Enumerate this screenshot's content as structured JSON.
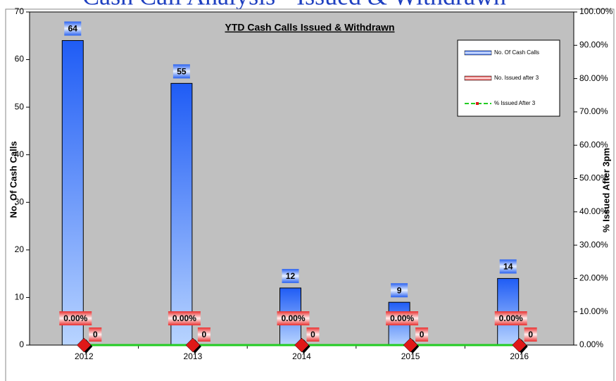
{
  "header": {
    "title": "Cash Call Analysis - Issued & Withdrawn"
  },
  "chart_data": {
    "type": "bar",
    "title": "YTD Cash Calls Issued & Withdrawn",
    "ylabel": "No. Of Cash Calls",
    "y2label": "% Issued After 3pm",
    "categories": [
      "2012",
      "2013",
      "2014",
      "2015",
      "2016"
    ],
    "series": [
      {
        "name": "No. Of Cash Calls",
        "color": "#2a62f0",
        "values": [
          64,
          55,
          12,
          9,
          14
        ]
      },
      {
        "name": "No. Issued after 3",
        "color": "#e83030",
        "values": [
          0,
          0,
          0,
          0,
          0
        ]
      },
      {
        "name": "% Issued After 3",
        "type": "line",
        "axis": "y2",
        "color": "#22cc22",
        "marker_color": "#e01818",
        "values": [
          0,
          0,
          0,
          0,
          0
        ],
        "value_labels": [
          "0.00%",
          "0.00%",
          "0.00%",
          "0.00%",
          "0.00%"
        ]
      }
    ],
    "ylim": [
      0,
      70
    ],
    "yticks": [
      0,
      10,
      20,
      30,
      40,
      50,
      60,
      70
    ],
    "y2lim": [
      0,
      100
    ],
    "y2ticks": [
      {
        "value": 0,
        "label": "0.00%"
      },
      {
        "value": 10,
        "label": "10.00%"
      },
      {
        "value": 20,
        "label": "20.00%"
      },
      {
        "value": 30,
        "label": "30.00%"
      },
      {
        "value": 40,
        "label": "40.00%"
      },
      {
        "value": 50,
        "label": "50.00%"
      },
      {
        "value": 60,
        "label": "60.00%"
      },
      {
        "value": 70,
        "label": "70.00%"
      },
      {
        "value": 80,
        "label": "80.00%"
      },
      {
        "value": 90,
        "label": "90.00%"
      },
      {
        "value": 100,
        "label": "100.00%"
      }
    ],
    "legend": "upper right",
    "background": "#c0c0c0"
  }
}
